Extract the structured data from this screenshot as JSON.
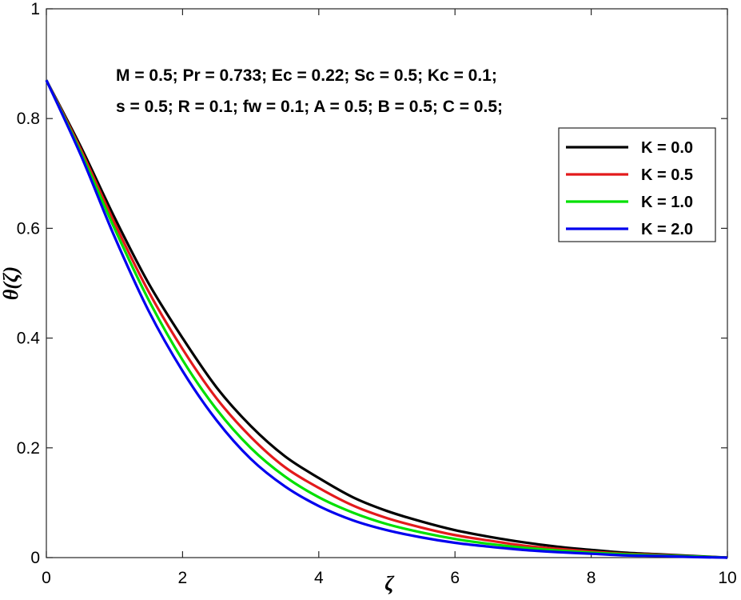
{
  "chart_data": {
    "type": "line",
    "xlabel": "ζ",
    "ylabel": "θ(ζ)",
    "xlim": [
      0,
      10
    ],
    "ylim": [
      0,
      1
    ],
    "xticks": [
      "0",
      "2",
      "4",
      "6",
      "8",
      "10"
    ],
    "yticks": [
      "0",
      "0.2",
      "0.4",
      "0.6",
      "0.8",
      "1"
    ],
    "grid": false,
    "legend_position": "upper-right",
    "annotations": [
      "M = 0.5; Pr = 0.733; Ec = 0.22; Sc = 0.5; Kc = 0.1;",
      "s = 0.5; R = 0.1; fw = 0.1; A = 0.5; B = 0.5; C = 0.5;"
    ],
    "x": [
      0,
      0.5,
      1,
      1.5,
      2,
      2.5,
      3,
      3.5,
      4,
      4.5,
      5,
      5.5,
      6,
      6.5,
      7,
      7.5,
      8,
      8.5,
      9,
      9.5,
      10
    ],
    "series": [
      {
        "name": "K = 0.0",
        "color": "#000000",
        "values": [
          0.87,
          0.75,
          0.62,
          0.5,
          0.4,
          0.31,
          0.24,
          0.185,
          0.145,
          0.11,
          0.085,
          0.066,
          0.05,
          0.038,
          0.028,
          0.02,
          0.014,
          0.009,
          0.006,
          0.003,
          0.0
        ]
      },
      {
        "name": "K = 0.5",
        "color": "#e31a1c",
        "values": [
          0.87,
          0.745,
          0.61,
          0.485,
          0.38,
          0.29,
          0.22,
          0.165,
          0.127,
          0.095,
          0.072,
          0.055,
          0.041,
          0.031,
          0.022,
          0.016,
          0.011,
          0.007,
          0.005,
          0.002,
          0.0
        ]
      },
      {
        "name": "K = 1.0",
        "color": "#00e000",
        "values": [
          0.87,
          0.74,
          0.6,
          0.47,
          0.36,
          0.27,
          0.2,
          0.148,
          0.11,
          0.082,
          0.061,
          0.046,
          0.034,
          0.025,
          0.018,
          0.013,
          0.009,
          0.006,
          0.004,
          0.002,
          0.0
        ]
      },
      {
        "name": "K = 2.0",
        "color": "#0000ee",
        "values": [
          0.87,
          0.735,
          0.585,
          0.45,
          0.34,
          0.25,
          0.18,
          0.13,
          0.094,
          0.068,
          0.05,
          0.037,
          0.027,
          0.02,
          0.014,
          0.01,
          0.007,
          0.004,
          0.003,
          0.001,
          0.0
        ]
      }
    ]
  }
}
